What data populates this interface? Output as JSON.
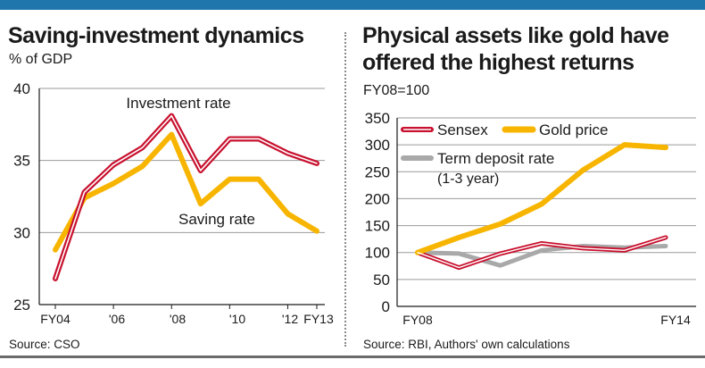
{
  "left": {
    "title": "Saving-investment dynamics",
    "subtitle": "% of GDP",
    "source": "Source: CSO",
    "annotations": {
      "investment": "Investment rate",
      "saving": "Saving rate"
    }
  },
  "right": {
    "title_lines": [
      "Physical assets like gold have",
      "offered the highest returns"
    ],
    "subtitle": "FY08=100",
    "source": "Source: RBI, Authors' own calculations"
  },
  "colors": {
    "accent_bar": "#1f76ad",
    "investment": "#c8102e",
    "saving": "#f7b500",
    "sensex": "#c8102e",
    "gold": "#f7b500",
    "deposit": "#a9a9a9"
  },
  "chart_data": [
    {
      "type": "line",
      "title": "Saving-investment dynamics",
      "subtitle": "% of GDP",
      "x": [
        "FY04",
        "FY05",
        "FY06",
        "FY07",
        "FY08",
        "FY09",
        "FY10",
        "FY11",
        "FY12",
        "FY13"
      ],
      "x_tick_labels": [
        "FY04",
        "'06",
        "'08",
        "'10",
        "'12",
        "FY13"
      ],
      "y_ticks": [
        25,
        30,
        35,
        40
      ],
      "ylim": [
        25,
        40
      ],
      "grid": true,
      "series": [
        {
          "name": "Investment rate",
          "values": [
            26.8,
            32.8,
            34.7,
            35.9,
            38.1,
            34.3,
            36.5,
            36.5,
            35.5,
            34.8
          ]
        },
        {
          "name": "Saving rate",
          "values": [
            28.8,
            32.4,
            33.4,
            34.6,
            36.8,
            32.0,
            33.7,
            33.7,
            31.3,
            30.1
          ]
        }
      ]
    },
    {
      "type": "line",
      "title": "Physical assets like gold have offered the highest returns",
      "subtitle": "FY08=100",
      "x": [
        "FY08",
        "FY09",
        "FY10",
        "FY11",
        "FY12",
        "FY13",
        "FY14"
      ],
      "x_tick_labels": [
        "FY08",
        "FY14"
      ],
      "y_ticks": [
        0,
        50,
        100,
        150,
        200,
        250,
        300,
        350
      ],
      "ylim": [
        0,
        350
      ],
      "grid": true,
      "legend": "top-left",
      "series": [
        {
          "name": "Sensex",
          "values": [
            100,
            72,
            98,
            117,
            108,
            104,
            128
          ]
        },
        {
          "name": "Gold price",
          "values": [
            100,
            128,
            153,
            190,
            253,
            300,
            295
          ]
        },
        {
          "name": "Term deposit rate (1-3 year)",
          "values": [
            100,
            98,
            76,
            104,
            112,
            109,
            112
          ]
        }
      ]
    }
  ]
}
